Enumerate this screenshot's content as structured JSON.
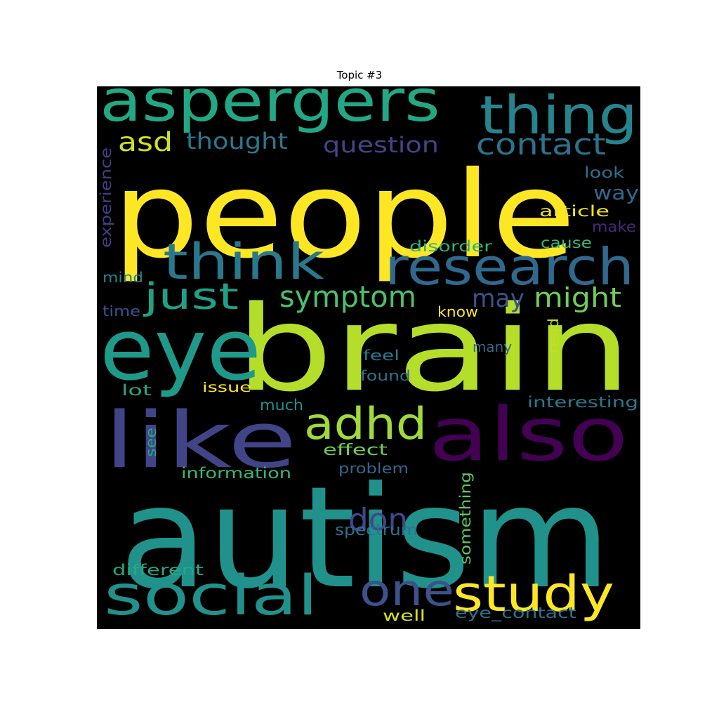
{
  "chart_data": {
    "type": "wordcloud",
    "title": "Topic #3",
    "background": "#000000",
    "colormap": "viridis",
    "words": [
      {
        "text": "autism",
        "color": "#21918c",
        "orientation": "horizontal"
      },
      {
        "text": "people",
        "color": "#fde725",
        "orientation": "horizontal"
      },
      {
        "text": "brain",
        "color": "#b5de2b",
        "orientation": "horizontal"
      },
      {
        "text": "eye",
        "color": "#1f9a8a",
        "orientation": "horizontal"
      },
      {
        "text": "also",
        "color": "#440154",
        "orientation": "horizontal"
      },
      {
        "text": "like",
        "color": "#414487",
        "orientation": "horizontal"
      },
      {
        "text": "aspergers",
        "color": "#22a884",
        "orientation": "horizontal"
      },
      {
        "text": "thing",
        "color": "#25848e",
        "orientation": "horizontal"
      },
      {
        "text": "research",
        "color": "#31688e",
        "orientation": "horizontal"
      },
      {
        "text": "think",
        "color": "#2a788e",
        "orientation": "horizontal"
      },
      {
        "text": "social",
        "color": "#21918c",
        "orientation": "horizontal"
      },
      {
        "text": "study",
        "color": "#fde725",
        "orientation": "horizontal"
      },
      {
        "text": "one",
        "color": "#3b528b",
        "orientation": "horizontal"
      },
      {
        "text": "adhd",
        "color": "#a0da39",
        "orientation": "horizontal"
      },
      {
        "text": "just",
        "color": "#1fa187",
        "orientation": "horizontal"
      },
      {
        "text": "symptom",
        "color": "#4ac16d",
        "orientation": "horizontal"
      },
      {
        "text": "contact",
        "color": "#2c728e",
        "orientation": "horizontal"
      },
      {
        "text": "might",
        "color": "#6ece58",
        "orientation": "horizontal"
      },
      {
        "text": "don",
        "color": "#3e4989",
        "orientation": "horizontal"
      },
      {
        "text": "asd",
        "color": "#d0e11c",
        "orientation": "horizontal"
      },
      {
        "text": "thought",
        "color": "#2a788e",
        "orientation": "horizontal"
      },
      {
        "text": "question",
        "color": "#414487",
        "orientation": "horizontal"
      },
      {
        "text": "may",
        "color": "#3b528b",
        "orientation": "horizontal"
      },
      {
        "text": "way",
        "color": "#31688e",
        "orientation": "horizontal"
      },
      {
        "text": "look",
        "color": "#2d708e",
        "orientation": "horizontal"
      },
      {
        "text": "article",
        "color": "#f1e51d",
        "orientation": "horizontal"
      },
      {
        "text": "make",
        "color": "#482878",
        "orientation": "horizontal"
      },
      {
        "text": "cause",
        "color": "#35b779",
        "orientation": "horizontal"
      },
      {
        "text": "disorder",
        "color": "#2db27d",
        "orientation": "horizontal"
      },
      {
        "text": "experience",
        "color": "#433e85",
        "orientation": "vertical"
      },
      {
        "text": "mind",
        "color": "#26828e",
        "orientation": "horizontal"
      },
      {
        "text": "time",
        "color": "#3b528b",
        "orientation": "horizontal"
      },
      {
        "text": "know",
        "color": "#fde725",
        "orientation": "horizontal"
      },
      {
        "text": "read",
        "color": "#c2df23",
        "orientation": "vertical"
      },
      {
        "text": "many",
        "color": "#31688e",
        "orientation": "horizontal"
      },
      {
        "text": "feel",
        "color": "#2a788e",
        "orientation": "horizontal"
      },
      {
        "text": "found",
        "color": "#2c728e",
        "orientation": "horizontal"
      },
      {
        "text": "lot",
        "color": "#22a884",
        "orientation": "horizontal"
      },
      {
        "text": "issue",
        "color": "#fde725",
        "orientation": "horizontal"
      },
      {
        "text": "much",
        "color": "#21918c",
        "orientation": "horizontal"
      },
      {
        "text": "interesting",
        "color": "#2a788e",
        "orientation": "horizontal"
      },
      {
        "text": "see",
        "color": "#22a884",
        "orientation": "vertical"
      },
      {
        "text": "effect",
        "color": "#6ece58",
        "orientation": "horizontal"
      },
      {
        "text": "problem",
        "color": "#31688e",
        "orientation": "horizontal"
      },
      {
        "text": "information",
        "color": "#35b779",
        "orientation": "horizontal"
      },
      {
        "text": "something",
        "color": "#5ec962",
        "orientation": "vertical"
      },
      {
        "text": "spectrum",
        "color": "#2c728e",
        "orientation": "horizontal"
      },
      {
        "text": "different",
        "color": "#22a884",
        "orientation": "horizontal"
      },
      {
        "text": "well",
        "color": "#d8e219",
        "orientation": "horizontal"
      },
      {
        "text": "eye_contact",
        "color": "#2c728e",
        "orientation": "horizontal"
      }
    ]
  }
}
